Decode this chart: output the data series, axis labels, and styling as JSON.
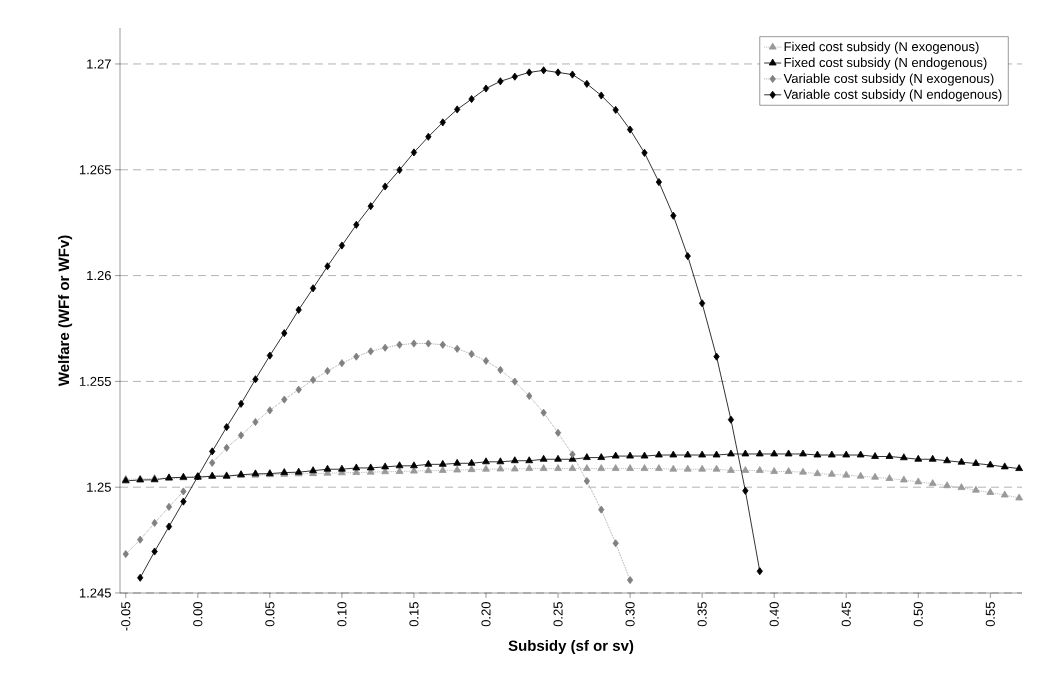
{
  "chart_data": {
    "type": "line",
    "xlabel": "Subsidy (sf or sv)",
    "ylabel": "Welfare (WFf or WFv)",
    "x": [
      -0.05,
      -0.04,
      -0.03,
      -0.02,
      -0.01,
      0.0,
      0.01,
      0.02,
      0.03,
      0.04,
      0.05,
      0.06,
      0.07,
      0.08,
      0.09,
      0.1,
      0.11,
      0.12,
      0.13,
      0.14,
      0.15,
      0.16,
      0.17,
      0.18,
      0.19,
      0.2,
      0.21,
      0.22,
      0.23,
      0.24,
      0.25,
      0.26,
      0.27,
      0.28,
      0.29,
      0.3,
      0.31,
      0.32,
      0.33,
      0.34,
      0.35,
      0.36,
      0.37,
      0.38,
      0.39,
      0.4,
      0.41,
      0.42,
      0.43,
      0.44,
      0.45,
      0.46,
      0.47,
      0.48,
      0.49,
      0.5,
      0.51,
      0.52,
      0.53,
      0.54,
      0.55,
      0.56,
      0.57
    ],
    "series": [
      {
        "name": "Fixed cost subsidy (N exogenous)",
        "color": "#999999",
        "marker": "triangle",
        "line_style": "dotted",
        "values": [
          1.25037,
          1.25039,
          1.25041,
          1.25042,
          1.25044,
          1.25051,
          1.25052,
          1.25054,
          1.25056,
          1.25057,
          1.25059,
          1.25061,
          1.25063,
          1.25064,
          1.25066,
          1.25068,
          1.25069,
          1.25071,
          1.25073,
          1.25074,
          1.25076,
          1.25078,
          1.25079,
          1.25081,
          1.25083,
          1.25085,
          1.25086,
          1.25086,
          1.25088,
          1.25088,
          1.25088,
          1.25088,
          1.25088,
          1.25088,
          1.25088,
          1.25088,
          1.25088,
          1.25088,
          1.25085,
          1.25085,
          1.25085,
          1.25085,
          1.25079,
          1.25079,
          1.25079,
          1.25074,
          1.25074,
          1.25071,
          1.25064,
          1.25061,
          1.25057,
          1.25052,
          1.25047,
          1.25041,
          1.25034,
          1.25025,
          1.25017,
          1.25007,
          1.24998,
          1.24986,
          1.24975,
          1.24963,
          1.24949
        ]
      },
      {
        "name": "Fixed cost subsidy (N endogenous)",
        "color": "#000000",
        "marker": "triangle",
        "line_style": "solid",
        "values": [
          1.2503,
          1.25034,
          1.25035,
          1.25044,
          1.25047,
          1.25047,
          1.25052,
          1.25052,
          1.25059,
          1.25063,
          1.25064,
          1.25069,
          1.25071,
          1.25078,
          1.25085,
          1.25085,
          1.25091,
          1.25091,
          1.25096,
          1.25101,
          1.25101,
          1.25108,
          1.25108,
          1.25113,
          1.25113,
          1.2512,
          1.2512,
          1.25125,
          1.25125,
          1.25132,
          1.25132,
          1.25132,
          1.2514,
          1.2514,
          1.25147,
          1.25147,
          1.25147,
          1.25152,
          1.25152,
          1.25152,
          1.25152,
          1.25152,
          1.25157,
          1.25157,
          1.25157,
          1.25157,
          1.25157,
          1.25157,
          1.25152,
          1.25152,
          1.25152,
          1.25152,
          1.25145,
          1.25145,
          1.25139,
          1.25132,
          1.25132,
          1.25125,
          1.25118,
          1.25112,
          1.25105,
          1.25096,
          1.25088
        ]
      },
      {
        "name": "Variable cost subsidy (N exogenous)",
        "color": "#808080",
        "marker": "diamond",
        "line_style": "dotted",
        "values": [
          1.24684,
          1.24752,
          1.24831,
          1.24907,
          1.2498,
          null,
          1.25115,
          1.25186,
          1.25245,
          1.25308,
          1.25363,
          1.25414,
          1.25461,
          1.25507,
          1.25549,
          1.25586,
          1.25617,
          1.25642,
          1.25659,
          1.25673,
          1.25679,
          1.25679,
          1.25673,
          1.25654,
          1.25629,
          1.25597,
          1.25554,
          1.25499,
          1.25431,
          1.25352,
          1.25257,
          1.25155,
          1.25029,
          1.24894,
          1.24735,
          1.24561,
          null,
          null,
          null,
          null,
          null,
          null,
          null,
          null,
          null,
          null,
          null,
          null,
          null,
          null,
          null,
          null,
          null,
          null,
          null,
          null,
          null,
          null,
          null,
          null,
          null,
          null,
          null
        ]
      },
      {
        "name": "Variable cost subsidy (N endogenous)",
        "color": "#000000",
        "marker": "diamond",
        "line_style": "solid",
        "values": [
          null,
          1.24572,
          1.24696,
          1.24814,
          1.24932,
          1.25051,
          1.25169,
          1.25284,
          1.25394,
          1.2551,
          1.25622,
          1.25728,
          1.25838,
          1.2594,
          1.26044,
          1.26142,
          1.2624,
          1.26328,
          1.26421,
          1.26499,
          1.26582,
          1.26656,
          1.26724,
          1.26785,
          1.26834,
          1.26884,
          1.26918,
          1.2694,
          1.2696,
          1.2697,
          1.2696,
          1.2695,
          1.26906,
          1.26851,
          1.26783,
          1.2669,
          1.2658,
          1.26442,
          1.26283,
          1.26092,
          1.25869,
          1.25617,
          1.25319,
          1.24983,
          1.24603,
          null,
          null,
          null,
          null,
          null,
          null,
          null,
          null,
          null,
          null,
          null,
          null,
          null,
          null,
          null,
          null,
          null,
          null
        ]
      }
    ],
    "xlim": [
      -0.054,
      0.572
    ],
    "ylim": [
      1.245,
      1.2717
    ],
    "xticks": [
      {
        "value": -0.05,
        "label": "-0.05"
      },
      {
        "value": 0,
        "label": "0.00"
      },
      {
        "value": 0.05,
        "label": "0.05"
      },
      {
        "value": 0.1,
        "label": "0.10"
      },
      {
        "value": 0.15,
        "label": "0.15"
      },
      {
        "value": 0.2,
        "label": "0.20"
      },
      {
        "value": 0.25,
        "label": "0.25"
      },
      {
        "value": 0.3,
        "label": "0.30"
      },
      {
        "value": 0.35,
        "label": "0.35"
      },
      {
        "value": 0.4,
        "label": "0.40"
      },
      {
        "value": 0.45,
        "label": "0.45"
      },
      {
        "value": 0.5,
        "label": "0.50"
      },
      {
        "value": 0.55,
        "label": "0.55"
      }
    ],
    "yticks": [
      1.245,
      1.25,
      1.255,
      1.26,
      1.265,
      1.27
    ],
    "grid": "y",
    "legend": "top right"
  }
}
